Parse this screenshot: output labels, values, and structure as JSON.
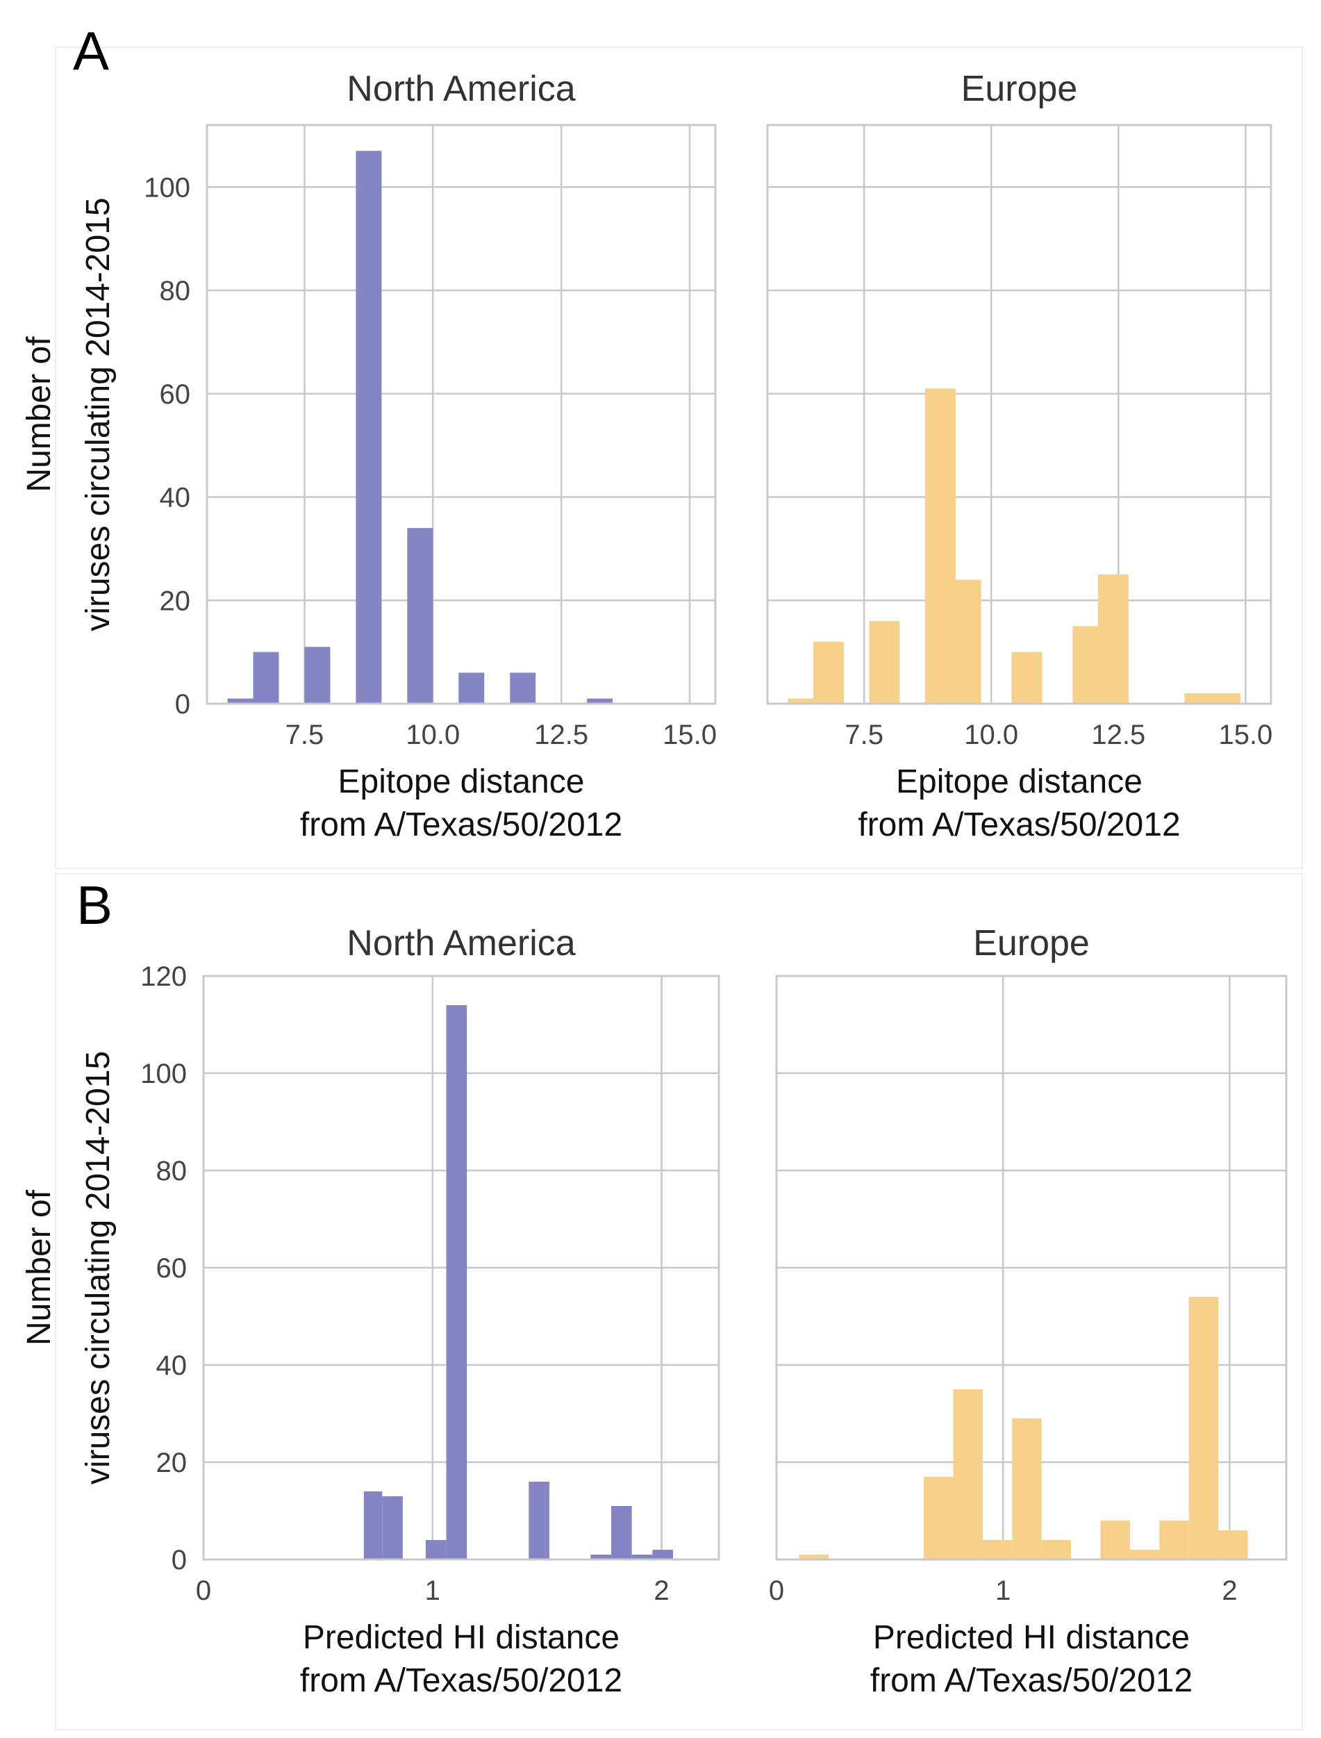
{
  "chart_data": [
    {
      "id": "A-na",
      "panel_label": "A",
      "type": "bar",
      "title": "North America",
      "xlabel": [
        "Epitope distance",
        "from A/Texas/50/2012"
      ],
      "ylabel": [
        "Number of",
        "viruses circulating 2014-2015"
      ],
      "xlim": [
        5.6,
        15.5
      ],
      "ylim": [
        0,
        112
      ],
      "xticks": [
        7.5,
        10.0,
        12.5,
        15.0
      ],
      "xtick_labels": [
        "7.5",
        "10.0",
        "12.5",
        "15.0"
      ],
      "yticks": [
        0,
        20,
        40,
        60,
        80,
        100
      ],
      "ytick_labels": [
        "0",
        "20",
        "40",
        "60",
        "80",
        "100"
      ],
      "color": "#8585c4",
      "bins": [
        {
          "x0": 6.0,
          "x1": 6.5,
          "value": 1
        },
        {
          "x0": 6.5,
          "x1": 7.0,
          "value": 10
        },
        {
          "x0": 7.5,
          "x1": 8.0,
          "value": 11
        },
        {
          "x0": 8.5,
          "x1": 9.0,
          "value": 107
        },
        {
          "x0": 9.5,
          "x1": 10.0,
          "value": 34
        },
        {
          "x0": 10.5,
          "x1": 11.0,
          "value": 6
        },
        {
          "x0": 11.5,
          "x1": 12.0,
          "value": 6
        },
        {
          "x0": 13.0,
          "x1": 13.5,
          "value": 1
        }
      ]
    },
    {
      "id": "A-eu",
      "panel_label": "",
      "type": "bar",
      "title": "Europe",
      "xlabel": [
        "Epitope distance",
        "from A/Texas/50/2012"
      ],
      "ylabel": [],
      "xlim": [
        5.6,
        15.5
      ],
      "ylim": [
        0,
        112
      ],
      "xticks": [
        7.5,
        10.0,
        12.5,
        15.0
      ],
      "xtick_labels": [
        "7.5",
        "10.0",
        "12.5",
        "15.0"
      ],
      "yticks": [
        0,
        20,
        40,
        60,
        80,
        100
      ],
      "ytick_labels": [],
      "color": "#f7d08a",
      "bins": [
        {
          "x0": 6.0,
          "x1": 6.5,
          "value": 1
        },
        {
          "x0": 6.5,
          "x1": 7.1,
          "value": 12
        },
        {
          "x0": 7.6,
          "x1": 8.2,
          "value": 16
        },
        {
          "x0": 8.7,
          "x1": 9.3,
          "value": 61
        },
        {
          "x0": 9.3,
          "x1": 9.8,
          "value": 24
        },
        {
          "x0": 10.4,
          "x1": 11.0,
          "value": 10
        },
        {
          "x0": 11.6,
          "x1": 12.1,
          "value": 15
        },
        {
          "x0": 12.1,
          "x1": 12.7,
          "value": 25
        },
        {
          "x0": 13.8,
          "x1": 14.9,
          "value": 2
        }
      ]
    },
    {
      "id": "B-na",
      "panel_label": "B",
      "type": "bar",
      "title": "North America",
      "xlabel": [
        "Predicted HI distance",
        "from A/Texas/50/2012"
      ],
      "ylabel": [
        "Number of",
        "viruses circulating 2014-2015"
      ],
      "xlim": [
        0,
        2.25
      ],
      "ylim": [
        0,
        120
      ],
      "xticks": [
        0,
        1,
        2
      ],
      "xtick_labels": [
        "0",
        "1",
        "2"
      ],
      "yticks": [
        0,
        20,
        40,
        60,
        80,
        100,
        120
      ],
      "ytick_labels": [
        "0",
        "20",
        "40",
        "60",
        "80",
        "100",
        "120"
      ],
      "color": "#8585c4",
      "bins": [
        {
          "x0": 0.7,
          "x1": 0.78,
          "value": 14
        },
        {
          "x0": 0.78,
          "x1": 0.87,
          "value": 13
        },
        {
          "x0": 0.97,
          "x1": 1.06,
          "value": 4
        },
        {
          "x0": 1.06,
          "x1": 1.15,
          "value": 114
        },
        {
          "x0": 1.42,
          "x1": 1.51,
          "value": 16
        },
        {
          "x0": 1.69,
          "x1": 1.78,
          "value": 1
        },
        {
          "x0": 1.78,
          "x1": 1.87,
          "value": 11
        },
        {
          "x0": 1.87,
          "x1": 1.96,
          "value": 1
        },
        {
          "x0": 1.96,
          "x1": 2.05,
          "value": 2
        }
      ]
    },
    {
      "id": "B-eu",
      "panel_label": "",
      "type": "bar",
      "title": "Europe",
      "xlabel": [
        "Predicted HI distance",
        "from A/Texas/50/2012"
      ],
      "ylabel": [],
      "xlim": [
        0,
        2.25
      ],
      "ylim": [
        0,
        120
      ],
      "xticks": [
        0,
        1,
        2
      ],
      "xtick_labels": [
        "0",
        "1",
        "2"
      ],
      "yticks": [
        0,
        20,
        40,
        60,
        80,
        100,
        120
      ],
      "ytick_labels": [],
      "color": "#f7d08a",
      "bins": [
        {
          "x0": 0.1,
          "x1": 0.23,
          "value": 1
        },
        {
          "x0": 0.65,
          "x1": 0.78,
          "value": 17
        },
        {
          "x0": 0.78,
          "x1": 0.91,
          "value": 35
        },
        {
          "x0": 0.91,
          "x1": 1.04,
          "value": 4
        },
        {
          "x0": 1.04,
          "x1": 1.17,
          "value": 29
        },
        {
          "x0": 1.17,
          "x1": 1.3,
          "value": 4
        },
        {
          "x0": 1.43,
          "x1": 1.56,
          "value": 8
        },
        {
          "x0": 1.56,
          "x1": 1.69,
          "value": 2
        },
        {
          "x0": 1.69,
          "x1": 1.82,
          "value": 8
        },
        {
          "x0": 1.82,
          "x1": 1.95,
          "value": 54
        },
        {
          "x0": 1.95,
          "x1": 2.08,
          "value": 6
        }
      ]
    }
  ]
}
